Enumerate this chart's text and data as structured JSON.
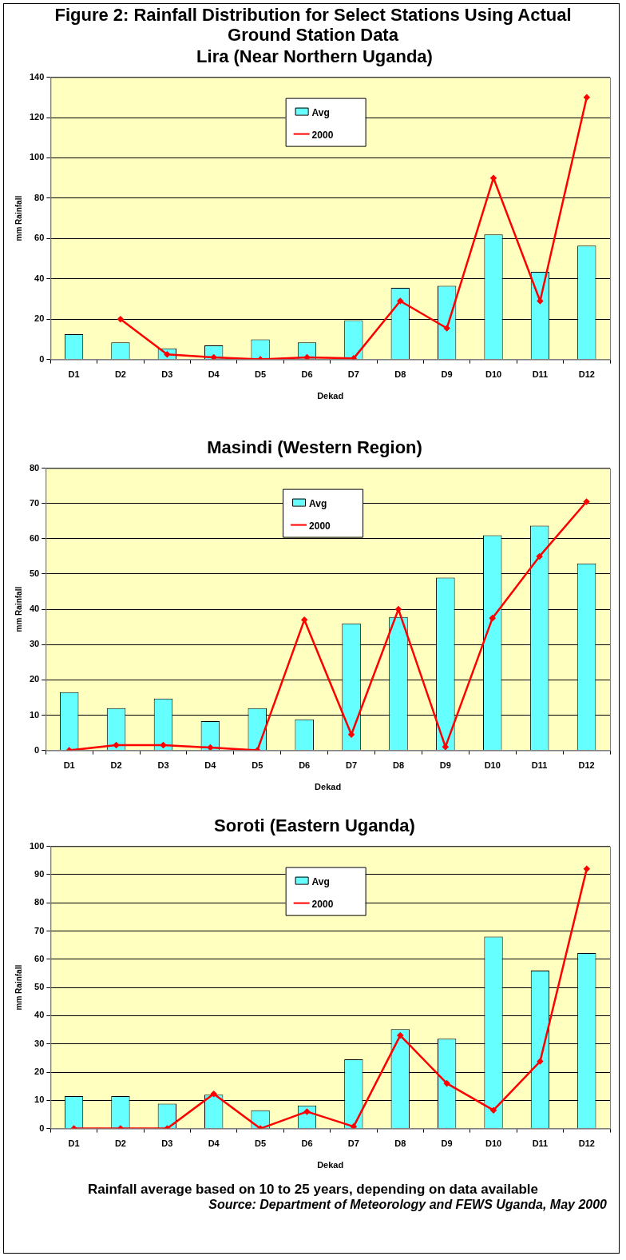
{
  "chart_data": [
    {
      "type": "bar",
      "title": "Figure 2: Rainfall Distribution for Select Stations Using Actual Ground Station Data",
      "subtitle": "Lira (Near Northern Uganda)",
      "xlabel": "Dekad",
      "ylabel": "mm Rainfall",
      "categories": [
        "D1",
        "D2",
        "D3",
        "D4",
        "D5",
        "D6",
        "D7",
        "D8",
        "D9",
        "D10",
        "D11",
        "D12"
      ],
      "series": [
        {
          "name": "Avg",
          "color": "#66ffff",
          "values": [
            12.5,
            8.5,
            5.5,
            7,
            10,
            8.5,
            19.5,
            35.5,
            36.5,
            62,
            43.5,
            56.5
          ]
        },
        {
          "name": "2000",
          "type": "line",
          "color": "#ff0000",
          "values": [
            null,
            20,
            2.5,
            1,
            0,
            1,
            0.5,
            29,
            15.5,
            90,
            29,
            130
          ]
        }
      ],
      "ylim": [
        0,
        140
      ],
      "yticks": [
        0,
        20,
        40,
        60,
        80,
        100,
        120,
        140
      ],
      "grid": "y",
      "legend": "top",
      "marker": "diamond"
    },
    {
      "type": "bar",
      "title": "Masindi (Western Region)",
      "xlabel": "Dekad",
      "ylabel": "mm Rainfall",
      "categories": [
        "D1",
        "D2",
        "D3",
        "D4",
        "D5",
        "D6",
        "D7",
        "D8",
        "D9",
        "D10",
        "D11",
        "D12"
      ],
      "series": [
        {
          "name": "Avg",
          "color": "#66ffff",
          "values": [
            16.5,
            12,
            14.7,
            8.3,
            12,
            8.8,
            36,
            37.8,
            49,
            61,
            63.7,
            53
          ]
        },
        {
          "name": "2000",
          "type": "line",
          "color": "#ff0000",
          "values": [
            0,
            1.5,
            1.5,
            0.8,
            0,
            37,
            4.5,
            40,
            1,
            37.5,
            55,
            70.5
          ]
        }
      ],
      "ylim": [
        0,
        80
      ],
      "yticks": [
        0,
        10,
        20,
        30,
        40,
        50,
        60,
        70,
        80
      ],
      "grid": "y",
      "legend": "top",
      "marker": "diamond"
    },
    {
      "type": "bar",
      "title": "Soroti (Eastern Uganda)",
      "xlabel": "Dekad",
      "ylabel": "mm Rainfall",
      "categories": [
        "D1",
        "D2",
        "D3",
        "D4",
        "D5",
        "D6",
        "D7",
        "D8",
        "D9",
        "D10",
        "D11",
        "D12"
      ],
      "series": [
        {
          "name": "Avg",
          "color": "#66ffff",
          "values": [
            11.5,
            11.5,
            8.8,
            12,
            6.5,
            8.2,
            24.5,
            35.2,
            31.8,
            68,
            56,
            62.2
          ]
        },
        {
          "name": "2000",
          "type": "line",
          "color": "#ff0000",
          "values": [
            0,
            0,
            0,
            12.3,
            0,
            6,
            0.7,
            33,
            16,
            6.5,
            23.8,
            92
          ]
        }
      ],
      "ylim": [
        0,
        100
      ],
      "yticks": [
        0,
        10,
        20,
        30,
        40,
        50,
        60,
        70,
        80,
        90,
        100
      ],
      "grid": "y",
      "legend": "top",
      "marker": "diamond",
      "annotations": [
        "Rainfall average based on 10 to 25 years, depending on data available",
        "Source: Department of Meteorology and FEWS Uganda, May 2000"
      ]
    }
  ]
}
